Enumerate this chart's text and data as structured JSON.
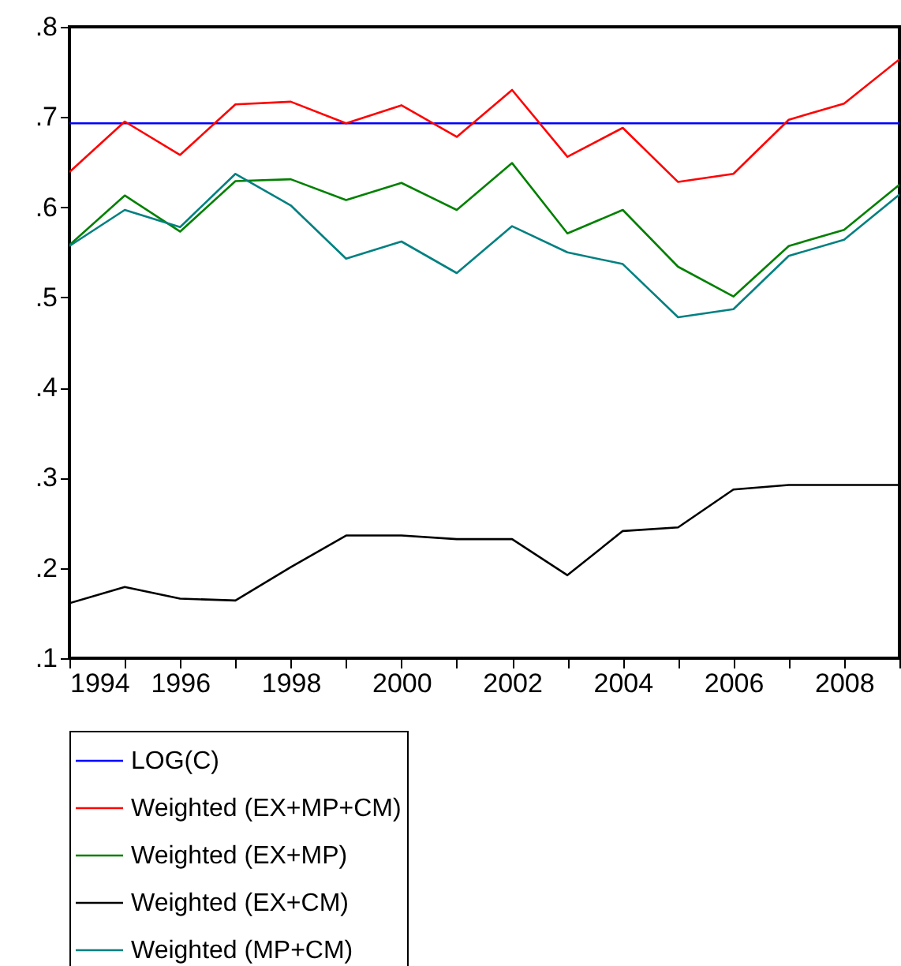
{
  "chart_data": {
    "type": "line",
    "x": [
      1994,
      1995,
      1996,
      1997,
      1998,
      1999,
      2000,
      2001,
      2002,
      2003,
      2004,
      2005,
      2006,
      2007,
      2008,
      2009
    ],
    "series": [
      {
        "name": "LOG(C)",
        "color": "#0000ff",
        "values": [
          0.693,
          0.693,
          0.693,
          0.693,
          0.693,
          0.693,
          0.693,
          0.693,
          0.693,
          0.693,
          0.693,
          0.693,
          0.693,
          0.693,
          0.693,
          0.693
        ]
      },
      {
        "name": "Weighted (EX+MP+CM)",
        "color": "#ff0000",
        "values": [
          0.639,
          0.695,
          0.658,
          0.714,
          0.717,
          0.693,
          0.713,
          0.678,
          0.73,
          0.656,
          0.688,
          0.628,
          0.637,
          0.697,
          0.715,
          0.764
        ]
      },
      {
        "name": "Weighted (EX+MP)",
        "color": "#008000",
        "values": [
          0.558,
          0.613,
          0.573,
          0.629,
          0.631,
          0.608,
          0.627,
          0.597,
          0.649,
          0.571,
          0.597,
          0.534,
          0.501,
          0.557,
          0.575,
          0.625
        ]
      },
      {
        "name": "Weighted (EX+CM)",
        "color": "#000000",
        "values": [
          0.161,
          0.179,
          0.166,
          0.164,
          0.201,
          0.236,
          0.236,
          0.232,
          0.232,
          0.192,
          0.241,
          0.245,
          0.287,
          0.292,
          0.292,
          0.292
        ]
      },
      {
        "name": "Weighted (MP+CM)",
        "color": "#008080",
        "values": [
          0.557,
          0.597,
          0.578,
          0.637,
          0.602,
          0.543,
          0.562,
          0.527,
          0.579,
          0.55,
          0.537,
          0.478,
          0.487,
          0.546,
          0.564,
          0.614
        ]
      }
    ],
    "xlim": [
      1994,
      2009
    ],
    "xticks": [
      1994,
      {
        "value": 1995,
        "label": null
      },
      1996,
      {
        "value": 1997,
        "label": null
      },
      1998,
      {
        "value": 1999,
        "label": null
      },
      2000,
      {
        "value": 2001,
        "label": null
      },
      2002,
      {
        "value": 2003,
        "label": null
      },
      2004,
      {
        "value": 2005,
        "label": null
      },
      2006,
      {
        "value": 2007,
        "label": null
      },
      2008,
      {
        "value": 2009,
        "label": null
      }
    ],
    "ylim": [
      0.1,
      0.8
    ],
    "yticks": [
      {
        "value": 0.1,
        "label": ".1"
      },
      {
        "value": 0.2,
        "label": ".2"
      },
      {
        "value": 0.3,
        "label": ".3"
      },
      {
        "value": 0.4,
        "label": ".4"
      },
      {
        "value": 0.5,
        "label": ".5"
      },
      {
        "value": 0.6,
        "label": ".6"
      },
      {
        "value": 0.7,
        "label": ".7"
      },
      {
        "value": 0.8,
        "label": ".8"
      }
    ],
    "grid": false,
    "legend": "bottom",
    "marker": "none",
    "line_style": "solid"
  }
}
